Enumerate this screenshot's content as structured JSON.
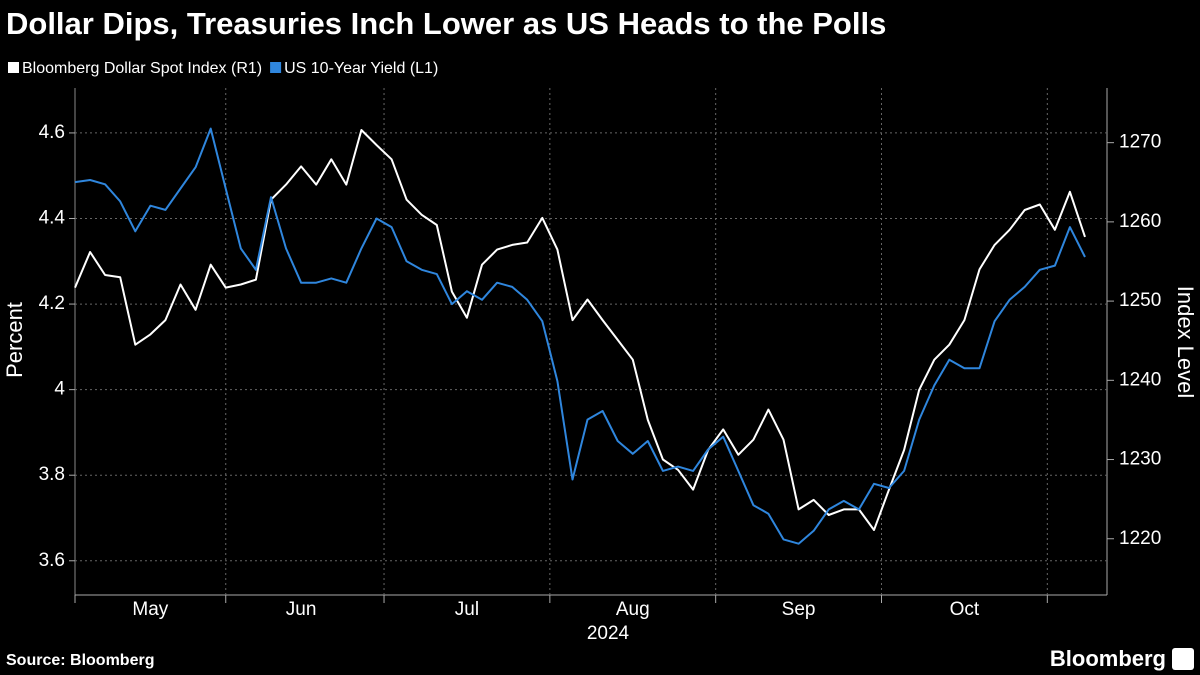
{
  "chart_data": {
    "type": "line",
    "title": "Dollar Dips, Treasuries Inch Lower as US Heads to the Polls",
    "xlabel": "2024",
    "ylabel": "Percent",
    "y2label": "Index Level",
    "source": "Source: Bloomberg",
    "logo": "Bloomberg",
    "categories": [
      null,
      null,
      null,
      null,
      null,
      "May",
      null,
      null,
      null,
      null,
      null,
      null,
      null,
      null,
      null,
      "Jun",
      null,
      null,
      null,
      null,
      null,
      null,
      null,
      null,
      null,
      null,
      "Jul",
      null,
      null,
      null,
      null,
      null,
      null,
      null,
      null,
      null,
      null,
      "Aug",
      null,
      null,
      null,
      null,
      null,
      null,
      null,
      null,
      null,
      null,
      "Sep",
      null,
      null,
      null,
      null,
      null,
      null,
      null,
      null,
      null,
      null,
      "Oct",
      null,
      null,
      null,
      null,
      null,
      null,
      null,
      null
    ],
    "series": [
      {
        "name": "Bloomberg Dollar Spot Index (R1)",
        "color": "#ffffff",
        "axis": "y2",
        "values": [
          1251.7,
          1256.2,
          1253.3,
          1253,
          1244.5,
          1245.8,
          1247.6,
          1252.1,
          1248.9,
          1254.6,
          1251.7,
          1252.1,
          1252.7,
          1262.8,
          1264.7,
          1267,
          1264.7,
          1267.9,
          1264.7,
          1271.6,
          1269.7,
          1267.9,
          1262.8,
          1260.9,
          1259.6,
          1251.2,
          1247.9,
          1254.6,
          1256.5,
          1257.1,
          1257.4,
          1260.5,
          1256.5,
          1247.6,
          1250.2,
          1247.6,
          1245.1,
          1242.6,
          1235,
          1230,
          1228.7,
          1226.2,
          1231.2,
          1233.8,
          1230.6,
          1232.5,
          1236.3,
          1232.5,
          1223.7,
          1224.9,
          1223,
          1223.7,
          1223.7,
          1221.1,
          1226.2,
          1231.2,
          1238.8,
          1242.6,
          1244.5,
          1247.6,
          1254,
          1257.1,
          1259,
          1261.5,
          1262.2,
          1259,
          1263.8,
          1258.1
        ]
      },
      {
        "name": "US 10-Year Yield (L1)",
        "color": "#2f86dd",
        "values": [
          4.485,
          4.49,
          4.48,
          4.44,
          4.37,
          4.43,
          4.42,
          4.47,
          4.52,
          4.61,
          4.47,
          4.33,
          4.28,
          4.45,
          4.33,
          4.25,
          4.25,
          4.26,
          4.25,
          4.33,
          4.4,
          4.38,
          4.3,
          4.28,
          4.27,
          4.2,
          4.23,
          4.21,
          4.25,
          4.24,
          4.21,
          4.16,
          4.02,
          3.79,
          3.93,
          3.95,
          3.88,
          3.85,
          3.88,
          3.81,
          3.82,
          3.81,
          3.86,
          3.89,
          3.81,
          3.73,
          3.71,
          3.65,
          3.64,
          3.67,
          3.72,
          3.74,
          3.72,
          3.78,
          3.77,
          3.81,
          3.93,
          4.01,
          4.07,
          4.05,
          4.05,
          4.16,
          4.21,
          4.24,
          4.28,
          4.29,
          4.38,
          4.31
        ]
      }
    ],
    "ylim": [
      3.52,
      4.705
    ],
    "yticks": [
      3.6,
      3.8,
      4.0,
      4.2,
      4.4,
      4.6
    ],
    "y2lim": [
      1212.9,
      1276.9
    ],
    "y2ticks": [
      1220,
      1230,
      1240,
      1250,
      1260,
      1270
    ],
    "grid": true
  }
}
